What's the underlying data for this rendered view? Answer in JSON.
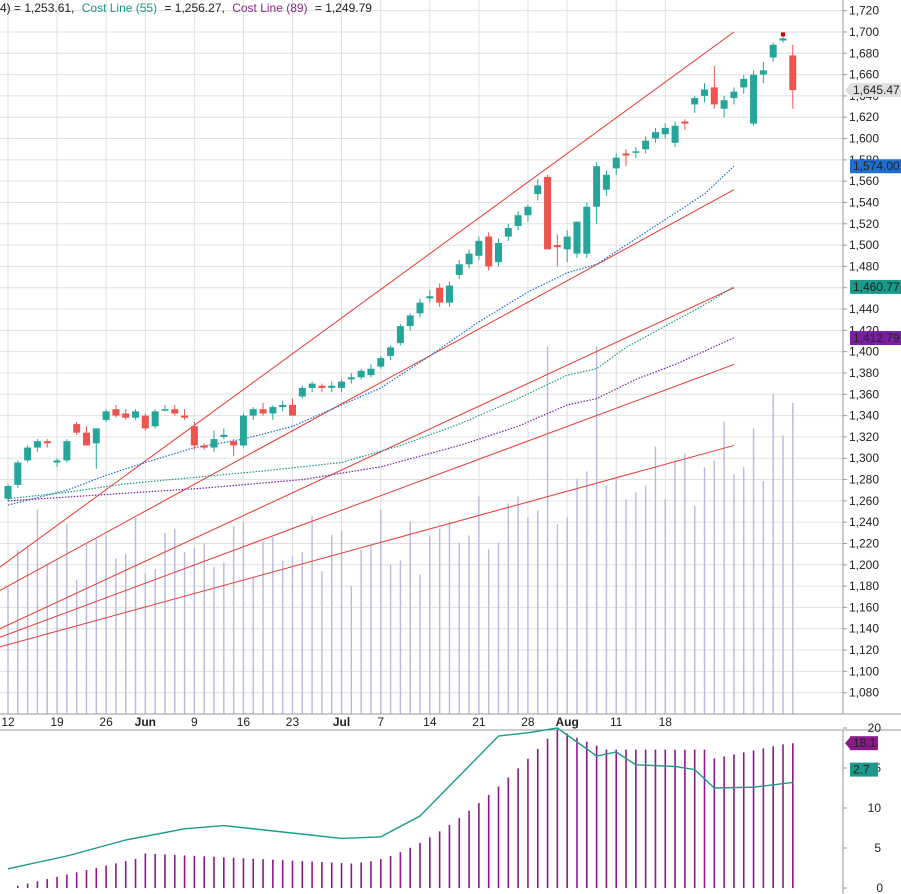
{
  "header": {
    "prefix": "4) = 1,253.61,",
    "line55_label": "Cost Line (55)",
    "line55_value": "= 1,256.27,",
    "line89_label": "Cost Line (89)",
    "line89_value": "= 1,249.79",
    "colors": {
      "line55": "#1a9a8a",
      "line89": "#8a2a8a",
      "text": "#222222"
    }
  },
  "chart_data": [
    {
      "type": "candlestick",
      "title": "",
      "ylim": [
        1060,
        1730
      ],
      "y_ticks": [
        1080,
        1100,
        1120,
        1140,
        1160,
        1180,
        1200,
        1220,
        1240,
        1260,
        1280,
        1300,
        1320,
        1340,
        1360,
        1380,
        1400,
        1420,
        1440,
        1460,
        1480,
        1500,
        1520,
        1540,
        1560,
        1580,
        1600,
        1620,
        1640,
        1660,
        1680,
        1700,
        1720
      ],
      "y_tick_labels": [
        "1,080",
        "1,100",
        "1,120",
        "1,140",
        "1,160",
        "1,180",
        "1,200",
        "1,220",
        "1,240",
        "1,260",
        "1,280",
        "1,300",
        "1,320",
        "1,340",
        "1,360",
        "1,380",
        "1,400",
        "1,420",
        "1,440",
        "1,460",
        "1,480",
        "1,500",
        "1,520",
        "1,540",
        "1,560",
        "1,580",
        "1,600",
        "1,620",
        "1,640",
        "1,660",
        "1,680",
        "1,700",
        "1,720"
      ],
      "x_tick_labels": [
        "12",
        "19",
        "26",
        "Jun",
        "9",
        "16",
        "23",
        "Jul",
        "7",
        "14",
        "21",
        "28",
        "Aug",
        "11",
        "18"
      ],
      "bold_x_labels": [
        "Jun",
        "Jul",
        "Aug"
      ],
      "x_tick_days": [
        0,
        5,
        10,
        14,
        19,
        24,
        29,
        34,
        38,
        43,
        48,
        53,
        57,
        62,
        67
      ],
      "colors": {
        "up": "#26a69a",
        "down": "#ef5350",
        "grid": "#e0e0e0",
        "volume": "#b8b8e0",
        "trendline": "#e53935",
        "ma_blue": "#1e6fd0",
        "ma_teal": "#1a9a8a",
        "ma_purple": "#7b1fa2"
      },
      "candles": [
        [
          1262,
          1276,
          1260,
          1274
        ],
        [
          1275,
          1298,
          1272,
          1296
        ],
        [
          1298,
          1312,
          1296,
          1310
        ],
        [
          1310,
          1318,
          1306,
          1316
        ],
        [
          1316,
          1318,
          1310,
          1314
        ],
        [
          1296,
          1300,
          1292,
          1298
        ],
        [
          1298,
          1318,
          1296,
          1316
        ],
        [
          1332,
          1334,
          1322,
          1324
        ],
        [
          1324,
          1330,
          1312,
          1312
        ],
        [
          1314,
          1328,
          1290,
          1328
        ],
        [
          1336,
          1346,
          1334,
          1344
        ],
        [
          1346,
          1350,
          1338,
          1340
        ],
        [
          1342,
          1346,
          1336,
          1338
        ],
        [
          1338,
          1346,
          1336,
          1344
        ],
        [
          1340,
          1342,
          1326,
          1328
        ],
        [
          1330,
          1346,
          1328,
          1344
        ],
        [
          1346,
          1350,
          1344,
          1346
        ],
        [
          1346,
          1350,
          1340,
          1342
        ],
        [
          1340,
          1346,
          1336,
          1338
        ],
        [
          1330,
          1334,
          1308,
          1312
        ],
        [
          1312,
          1314,
          1308,
          1310
        ],
        [
          1310,
          1326,
          1306,
          1318
        ],
        [
          1320,
          1328,
          1318,
          1322
        ],
        [
          1316,
          1318,
          1302,
          1312
        ],
        [
          1312,
          1342,
          1310,
          1340
        ],
        [
          1340,
          1348,
          1336,
          1346
        ],
        [
          1346,
          1352,
          1340,
          1342
        ],
        [
          1342,
          1350,
          1336,
          1348
        ],
        [
          1348,
          1354,
          1344,
          1350
        ],
        [
          1350,
          1356,
          1346,
          1340
        ],
        [
          1358,
          1368,
          1356,
          1366
        ],
        [
          1366,
          1372,
          1362,
          1370
        ],
        [
          1368,
          1370,
          1362,
          1366
        ],
        [
          1366,
          1372,
          1362,
          1368
        ],
        [
          1366,
          1374,
          1362,
          1372
        ],
        [
          1374,
          1380,
          1370,
          1376
        ],
        [
          1376,
          1384,
          1374,
          1382
        ],
        [
          1378,
          1388,
          1376,
          1384
        ],
        [
          1386,
          1396,
          1384,
          1394
        ],
        [
          1396,
          1406,
          1392,
          1404
        ],
        [
          1408,
          1426,
          1406,
          1424
        ],
        [
          1424,
          1436,
          1420,
          1434
        ],
        [
          1436,
          1450,
          1432,
          1446
        ],
        [
          1450,
          1458,
          1446,
          1452
        ],
        [
          1460,
          1464,
          1442,
          1446
        ],
        [
          1446,
          1466,
          1442,
          1462
        ],
        [
          1472,
          1486,
          1468,
          1482
        ],
        [
          1482,
          1496,
          1478,
          1492
        ],
        [
          1490,
          1508,
          1486,
          1504
        ],
        [
          1508,
          1512,
          1476,
          1480
        ],
        [
          1484,
          1506,
          1480,
          1502
        ],
        [
          1508,
          1520,
          1504,
          1516
        ],
        [
          1518,
          1532,
          1514,
          1528
        ],
        [
          1528,
          1538,
          1522,
          1536
        ],
        [
          1548,
          1562,
          1542,
          1556
        ],
        [
          1564,
          1566,
          1496,
          1496
        ],
        [
          1500,
          1510,
          1480,
          1498
        ],
        [
          1496,
          1514,
          1484,
          1508
        ],
        [
          1492,
          1522,
          1488,
          1522
        ],
        [
          1492,
          1540,
          1488,
          1536
        ],
        [
          1536,
          1578,
          1520,
          1574
        ],
        [
          1552,
          1570,
          1546,
          1566
        ],
        [
          1572,
          1586,
          1566,
          1582
        ],
        [
          1586,
          1590,
          1574,
          1584
        ],
        [
          1588,
          1592,
          1582,
          1588
        ],
        [
          1590,
          1602,
          1586,
          1598
        ],
        [
          1600,
          1610,
          1596,
          1606
        ],
        [
          1604,
          1614,
          1600,
          1610
        ],
        [
          1596,
          1616,
          1592,
          1612
        ],
        [
          1616,
          1618,
          1608,
          1614
        ],
        [
          1632,
          1640,
          1624,
          1638
        ],
        [
          1640,
          1652,
          1634,
          1646
        ],
        [
          1648,
          1668,
          1628,
          1632
        ],
        [
          1628,
          1640,
          1620,
          1636
        ],
        [
          1638,
          1648,
          1632,
          1644
        ],
        [
          1648,
          1660,
          1642,
          1656
        ],
        [
          1614,
          1664,
          1612,
          1660
        ],
        [
          1660,
          1672,
          1652,
          1664
        ],
        [
          1676,
          1690,
          1672,
          1688
        ],
        [
          1692,
          1696,
          1690,
          1694
        ],
        [
          1678,
          1688,
          1628,
          1645.47
        ]
      ],
      "last_price": 1645.47,
      "last_price_label": "1,645.47",
      "tags": [
        {
          "label": "1,574.00",
          "value": 1574.0,
          "color": "#1e6fd0"
        },
        {
          "label": "1,460.77",
          "value": 1460.77,
          "color": "#1a9a8a"
        },
        {
          "label": "1,412.79",
          "value": 1412.79,
          "color": "#7b1fa2"
        }
      ]
    },
    {
      "type": "bar",
      "title": "",
      "ylim": [
        0,
        20
      ],
      "y_ticks": [
        0,
        5,
        10,
        15,
        20
      ],
      "y_tick_labels": [
        "0",
        "5",
        "10",
        "15",
        "20"
      ],
      "bar_color": "#8a1a8a",
      "line_color": "#1a9a8a",
      "tags": [
        {
          "label": "18.1",
          "value": 18.1,
          "color": "#8a1a8a"
        },
        {
          "label": "2.7",
          "value": 14.8,
          "color": "#1a9a8a"
        }
      ]
    }
  ]
}
